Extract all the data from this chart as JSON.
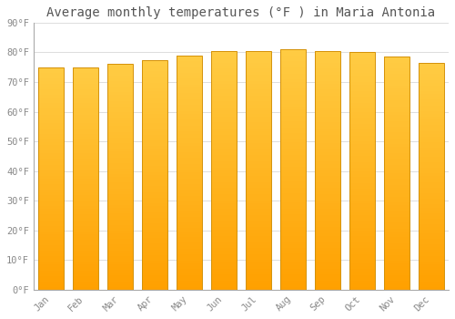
{
  "title": "Average monthly temperatures (°F ) in Maria Antonia",
  "months": [
    "Jan",
    "Feb",
    "Mar",
    "Apr",
    "May",
    "Jun",
    "Jul",
    "Aug",
    "Sep",
    "Oct",
    "Nov",
    "Dec"
  ],
  "values": [
    75.0,
    75.0,
    76.0,
    77.5,
    79.0,
    80.5,
    80.5,
    81.0,
    80.5,
    80.0,
    78.5,
    76.5
  ],
  "bar_color_top": "#FFCC44",
  "bar_color_bottom": "#FFA000",
  "bar_edge_color": "#D4920A",
  "ylim": [
    0,
    90
  ],
  "yticks": [
    0,
    10,
    20,
    30,
    40,
    50,
    60,
    70,
    80,
    90
  ],
  "ytick_labels": [
    "0°F",
    "10°F",
    "20°F",
    "30°F",
    "40°F",
    "50°F",
    "60°F",
    "70°F",
    "80°F",
    "90°F"
  ],
  "bg_color": "#ffffff",
  "grid_color": "#dddddd",
  "title_fontsize": 10,
  "tick_fontsize": 7.5,
  "title_color": "#555555",
  "tick_color": "#888888",
  "font_family": "monospace",
  "bar_width": 0.75
}
